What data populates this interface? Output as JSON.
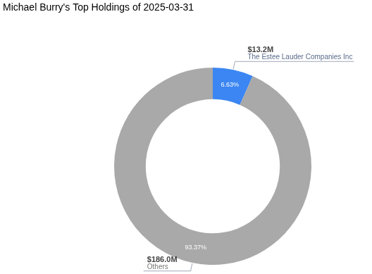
{
  "chart_data": {
    "type": "doughnut",
    "title": "Michael Burry's Top Holdings of 2025-03-31",
    "categories": [
      "The Estee Lauder Companies Inc",
      "Others"
    ],
    "values": [
      6.63,
      93.37
    ],
    "value_labels": [
      "6.63%",
      "93.37%"
    ],
    "amounts": [
      13.2,
      186.0
    ],
    "amount_labels": [
      "$13.2M",
      "$186.0M"
    ],
    "colors": [
      "#3b86f2",
      "#a9a9a9"
    ],
    "data_labels": true
  }
}
